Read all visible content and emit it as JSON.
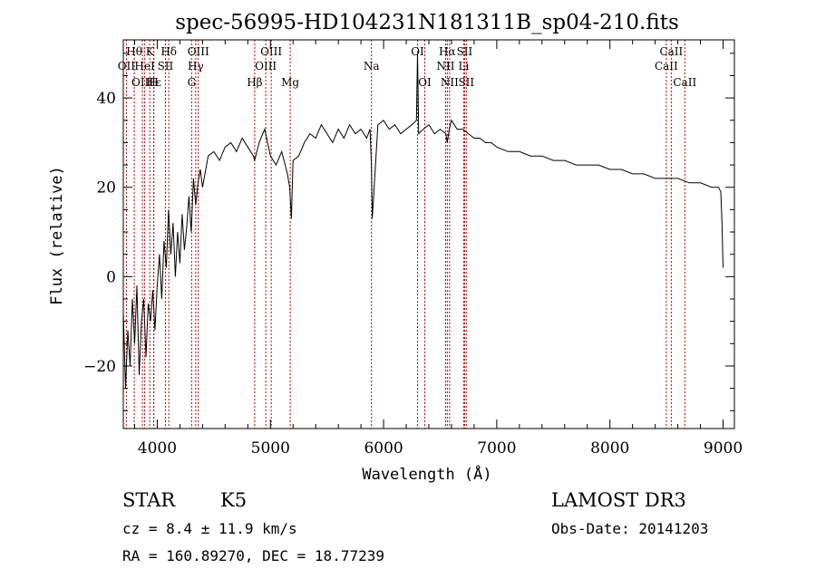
{
  "chart_data": {
    "type": "line",
    "title": "spec-56995-HD104231N181311B_sp04-210.fits",
    "xlabel": "Wavelength (Å)",
    "ylabel": "Flux (relative)",
    "xlim": [
      3700,
      9100
    ],
    "ylim": [
      -34,
      53
    ],
    "xticks": [
      4000,
      5000,
      6000,
      7000,
      8000,
      9000
    ],
    "xtick_labels": [
      "4000",
      "5000",
      "6000",
      "7000",
      "8000",
      "9000"
    ],
    "yticks": [
      -20,
      0,
      20,
      40
    ],
    "ytick_labels": [
      "−20",
      "0",
      "20",
      "40"
    ],
    "series": [
      {
        "name": "flux",
        "x": [
          3700,
          3720,
          3740,
          3760,
          3780,
          3800,
          3820,
          3840,
          3860,
          3880,
          3900,
          3920,
          3940,
          3960,
          3980,
          4000,
          4020,
          4040,
          4060,
          4080,
          4100,
          4120,
          4140,
          4160,
          4180,
          4200,
          4220,
          4240,
          4260,
          4280,
          4300,
          4320,
          4340,
          4360,
          4380,
          4400,
          4450,
          4500,
          4550,
          4600,
          4650,
          4700,
          4750,
          4800,
          4850,
          4860,
          4900,
          4950,
          5000,
          5050,
          5100,
          5150,
          5170,
          5185,
          5200,
          5250,
          5300,
          5350,
          5400,
          5450,
          5500,
          5550,
          5600,
          5650,
          5700,
          5750,
          5800,
          5850,
          5880,
          5893,
          5900,
          5950,
          6000,
          6050,
          6100,
          6150,
          6200,
          6250,
          6290,
          6300,
          6310,
          6350,
          6400,
          6450,
          6500,
          6550,
          6563,
          6580,
          6600,
          6650,
          6700,
          6750,
          6800,
          6850,
          6900,
          6950,
          7000,
          7100,
          7200,
          7300,
          7400,
          7500,
          7600,
          7700,
          7800,
          7900,
          8000,
          8100,
          8200,
          8300,
          8400,
          8500,
          8600,
          8700,
          8800,
          8900,
          8960,
          8980,
          8990,
          9000
        ],
        "y": [
          -8,
          -25,
          -12,
          -20,
          -5,
          -15,
          -2,
          -22,
          -10,
          -5,
          -18,
          -6,
          -10,
          -3,
          -12,
          -2,
          5,
          -5,
          8,
          2,
          15,
          5,
          12,
          0,
          10,
          3,
          14,
          6,
          11,
          18,
          10,
          22,
          16,
          21,
          24,
          20,
          27,
          28,
          26,
          29,
          30,
          28,
          31,
          29,
          27,
          26,
          30,
          33,
          27,
          25,
          28,
          23,
          20,
          13,
          26,
          27,
          30,
          32,
          31,
          34,
          32,
          30,
          33,
          31,
          34,
          32,
          33,
          31,
          33,
          25,
          13,
          34,
          35,
          33,
          34,
          32,
          33,
          34,
          35,
          50,
          32,
          33,
          34,
          32,
          33,
          32,
          30,
          33,
          35,
          33,
          33,
          32,
          31,
          31,
          30,
          30,
          29,
          28,
          28,
          27,
          27,
          26,
          26,
          25,
          25,
          25,
          24,
          24,
          23,
          23,
          22,
          22,
          22,
          21,
          21,
          20,
          20,
          19,
          12,
          2
        ]
      }
    ],
    "lines": [
      {
        "label": "Hθ",
        "wavelength": 3797,
        "row": 1
      },
      {
        "label": "OII",
        "wavelength": 3727,
        "row": 2
      },
      {
        "label": "OIII",
        "wavelength": 3869,
        "row": 3
      },
      {
        "label": "HeI",
        "wavelength": 3889,
        "row": 2
      },
      {
        "label": "Hε",
        "wavelength": 3970,
        "row": 3
      },
      {
        "label": "K",
        "wavelength": 3934,
        "row": 1
      },
      {
        "label": "H",
        "wavelength": 3968,
        "row": 3
      },
      {
        "label": "SII",
        "wavelength": 4072,
        "row": 2
      },
      {
        "label": "Hδ",
        "wavelength": 4102,
        "row": 1
      },
      {
        "label": "OIII",
        "wavelength": 4363,
        "row": 1
      },
      {
        "label": "Hγ",
        "wavelength": 4340,
        "row": 2
      },
      {
        "label": "G",
        "wavelength": 4304,
        "row": 3
      },
      {
        "label": "Hβ",
        "wavelength": 4861,
        "row": 3
      },
      {
        "label": "OIII",
        "wavelength": 5007,
        "row": 1
      },
      {
        "label": "OIII",
        "wavelength": 4959,
        "row": 2
      },
      {
        "label": "Mg",
        "wavelength": 5175,
        "row": 3
      },
      {
        "label": "Na",
        "wavelength": 5893,
        "row": 2
      },
      {
        "label": "OI",
        "wavelength": 6300,
        "row": 1
      },
      {
        "label": "OI",
        "wavelength": 6364,
        "row": 3
      },
      {
        "label": "Hα",
        "wavelength": 6563,
        "row": 1
      },
      {
        "label": "NII",
        "wavelength": 6548,
        "row": 2
      },
      {
        "label": "NII",
        "wavelength": 6583,
        "row": 3
      },
      {
        "label": "SII",
        "wavelength": 6716,
        "row": 1
      },
      {
        "label": "Li",
        "wavelength": 6708,
        "row": 2
      },
      {
        "label": "SII",
        "wavelength": 6731,
        "row": 3
      },
      {
        "label": "CaII",
        "wavelength": 8542,
        "row": 1
      },
      {
        "label": "CaII",
        "wavelength": 8498,
        "row": 2
      },
      {
        "label": "CaII",
        "wavelength": 8662,
        "row": 3
      }
    ]
  },
  "info": {
    "type": "STAR",
    "subclass": "K5",
    "survey": "LAMOST DR3",
    "cz": "cz = 8.4 ± 11.9 km/s",
    "obsdate": "Obs-Date: 20141203",
    "radec": "RA = 160.89270, DEC =  18.77239"
  },
  "colors": {
    "axis": "#000000",
    "spectrum": "#000000",
    "lines": "#c00000"
  }
}
